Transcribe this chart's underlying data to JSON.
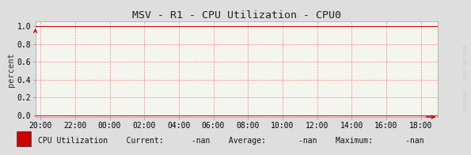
{
  "title": "MSV - R1 - CPU Utilization - CPU0",
  "ylabel": "percent",
  "x_tick_labels": [
    "20:00",
    "22:00",
    "00:00",
    "02:00",
    "04:00",
    "06:00",
    "08:00",
    "10:00",
    "12:00",
    "14:00",
    "16:00",
    "18:00"
  ],
  "x_ticks": [
    0,
    2,
    4,
    6,
    8,
    10,
    12,
    14,
    16,
    18,
    20,
    22
  ],
  "xlim": [
    -0.3,
    23.0
  ],
  "ylim": [
    -0.02,
    1.05
  ],
  "y_ticks": [
    0.0,
    0.2,
    0.4,
    0.6,
    0.8,
    1.0
  ],
  "y_tick_labels": [
    "0.0",
    "0.2",
    "0.4",
    "0.6",
    "0.8",
    "1.0"
  ],
  "grid_color": "#ff8080",
  "bg_color": "#dedede",
  "plot_bg_color": "#f5f5f0",
  "arrow_color": "#cc0000",
  "title_fontsize": 9.5,
  "axis_label_fontsize": 7.5,
  "tick_fontsize": 7,
  "legend_label": "CPU Utilization",
  "legend_current": "Current:",
  "legend_current_val": "-nan",
  "legend_average": "Average:",
  "legend_average_val": "-nan",
  "legend_maximum": "Maximum:",
  "legend_maximum_val": "-nan",
  "legend_square_color": "#cc0000",
  "watermark": "RRDTOOL / TOBI OETIKER",
  "font_family": "monospace",
  "watermark_color": "#c8c8c8"
}
